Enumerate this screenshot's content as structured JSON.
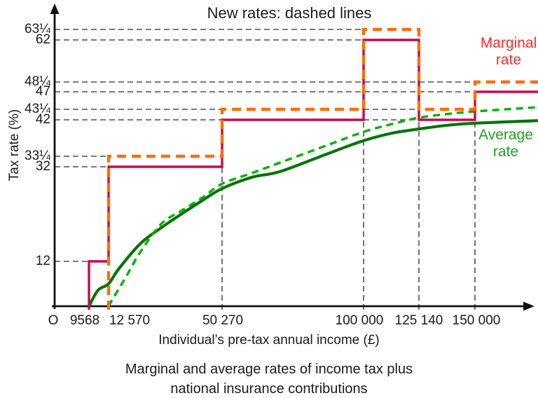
{
  "title": "New rates: dashed lines",
  "y_axis": {
    "label": "Tax rate (%)",
    "ticks": [
      {
        "value": 63.25,
        "label": "63¼"
      },
      {
        "value": 62,
        "label": "62"
      },
      {
        "value": 48.25,
        "label": "48¼"
      },
      {
        "value": 47,
        "label": "47"
      },
      {
        "value": 43.25,
        "label": "43¼"
      },
      {
        "value": 42,
        "label": "42"
      },
      {
        "value": 33.25,
        "label": "33¼"
      },
      {
        "value": 32,
        "label": "32"
      },
      {
        "value": 12,
        "label": "12"
      }
    ]
  },
  "x_axis": {
    "label": "Individual’s pre-tax annual income (£)",
    "origin_label": "O",
    "ticks": [
      {
        "value": 9568,
        "label": "9568"
      },
      {
        "value": 12570,
        "label": "12 570"
      },
      {
        "value": 50270,
        "label": "50 270"
      },
      {
        "value": 100000,
        "label": "100 000"
      },
      {
        "value": 125140,
        "label": "125 140"
      },
      {
        "value": 150000,
        "label": "150 000"
      }
    ]
  },
  "legend": {
    "marginal": {
      "lines": [
        "Marginal",
        "rate"
      ],
      "color": "#ff2a2a"
    },
    "average": {
      "lines": [
        "Average",
        "rate"
      ],
      "color": "#22a022"
    }
  },
  "caption": {
    "lines": [
      "Marginal and average rates of income tax plus",
      "national insurance contributions"
    ]
  },
  "colors": {
    "marginal_old": "#c9094c",
    "marginal_new": "#ff6d00",
    "average_old": "#077407",
    "average_new": "#00b300",
    "gridline": "#4e4e4e",
    "axis": "#111111"
  },
  "chart_data": {
    "type": "line",
    "title": "New rates: dashed lines",
    "xlabel": "Individual’s pre-tax annual income (£)",
    "ylabel": "Tax rate (%)",
    "x_thresholds": [
      9568,
      12570,
      50270,
      100000,
      125140,
      150000
    ],
    "y_gridline_values": [
      12,
      32,
      33.25,
      42,
      43.25,
      47,
      48.25,
      62,
      63.25
    ],
    "legend_position": "right",
    "series": [
      {
        "name": "Marginal rate (current, solid)",
        "style": "solid",
        "color": "#c9094c",
        "kind": "step",
        "segments": [
          {
            "from_income": 9568,
            "to_income": 12570,
            "rate": 12
          },
          {
            "from_income": 12570,
            "to_income": 50270,
            "rate": 32
          },
          {
            "from_income": 50270,
            "to_income": 100000,
            "rate": 42
          },
          {
            "from_income": 100000,
            "to_income": 125140,
            "rate": 62
          },
          {
            "from_income": 125140,
            "to_income": 150000,
            "rate": 42
          },
          {
            "from_income": 150000,
            "to_income": 183000,
            "rate": 47
          }
        ]
      },
      {
        "name": "Marginal rate (new, dashed)",
        "style": "dashed",
        "color": "#ff6d00",
        "kind": "step",
        "segments": [
          {
            "from_income": 12570,
            "to_income": 50270,
            "rate": 33.25
          },
          {
            "from_income": 50270,
            "to_income": 100000,
            "rate": 43.25
          },
          {
            "from_income": 100000,
            "to_income": 125140,
            "rate": 63.25
          },
          {
            "from_income": 125140,
            "to_income": 150000,
            "rate": 43.25
          },
          {
            "from_income": 150000,
            "to_income": 183000,
            "rate": 48.25
          }
        ]
      },
      {
        "name": "Average rate (current, solid)",
        "style": "solid",
        "color": "#077407",
        "kind": "curve",
        "points": [
          [
            9568,
            0
          ],
          [
            10960,
            4.3
          ],
          [
            12570,
            6.0
          ],
          [
            16060,
            10.1
          ],
          [
            23040,
            15.7
          ],
          [
            30020,
            19.1
          ],
          [
            37000,
            22.1
          ],
          [
            44010,
            25.0
          ],
          [
            50270,
            27.4
          ],
          [
            60860,
            29.8
          ],
          [
            70700,
            31.0
          ],
          [
            87200,
            33.8
          ],
          [
            100000,
            37.0
          ],
          [
            113000,
            38.8
          ],
          [
            125140,
            39.8
          ],
          [
            138000,
            40.7
          ],
          [
            150000,
            41.2
          ],
          [
            183000,
            41.8
          ]
        ]
      },
      {
        "name": "Average rate (new, dashed)",
        "style": "dashed",
        "color": "#00b300",
        "kind": "curve",
        "points": [
          [
            12570,
            0
          ],
          [
            14900,
            3.2
          ],
          [
            18390,
            7.9
          ],
          [
            23040,
            13.9
          ],
          [
            30020,
            19.9
          ],
          [
            37000,
            22.8
          ],
          [
            44010,
            25.6
          ],
          [
            50270,
            28.4
          ],
          [
            60860,
            30.7
          ],
          [
            70700,
            32.5
          ],
          [
            87200,
            35.9
          ],
          [
            100000,
            39.1
          ],
          [
            113000,
            41.0
          ],
          [
            125140,
            42.25
          ],
          [
            138000,
            42.7
          ],
          [
            150000,
            43.0
          ],
          [
            183000,
            43.7
          ]
        ]
      }
    ]
  }
}
